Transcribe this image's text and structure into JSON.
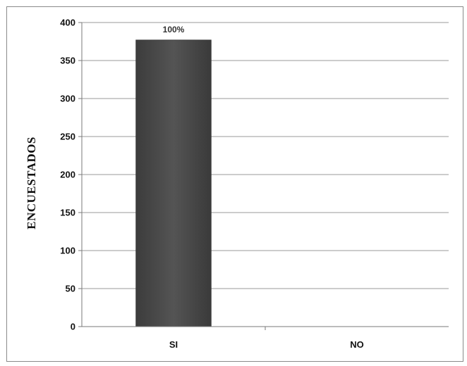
{
  "chart_data": {
    "type": "bar",
    "categories": [
      "SI",
      "NO"
    ],
    "values": [
      377,
      0
    ],
    "data_labels": [
      "100%",
      ""
    ],
    "title": "",
    "xlabel": "",
    "ylabel": "ENCUESTADOS",
    "ylim": [
      0,
      400
    ],
    "yticks": [
      0,
      50,
      100,
      150,
      200,
      250,
      300,
      350,
      400
    ],
    "grid": true,
    "legend": "none",
    "colors": {
      "bar": "#4a4a4a",
      "grid": "#9a9a9a",
      "axis": "#7a7a7a"
    }
  }
}
